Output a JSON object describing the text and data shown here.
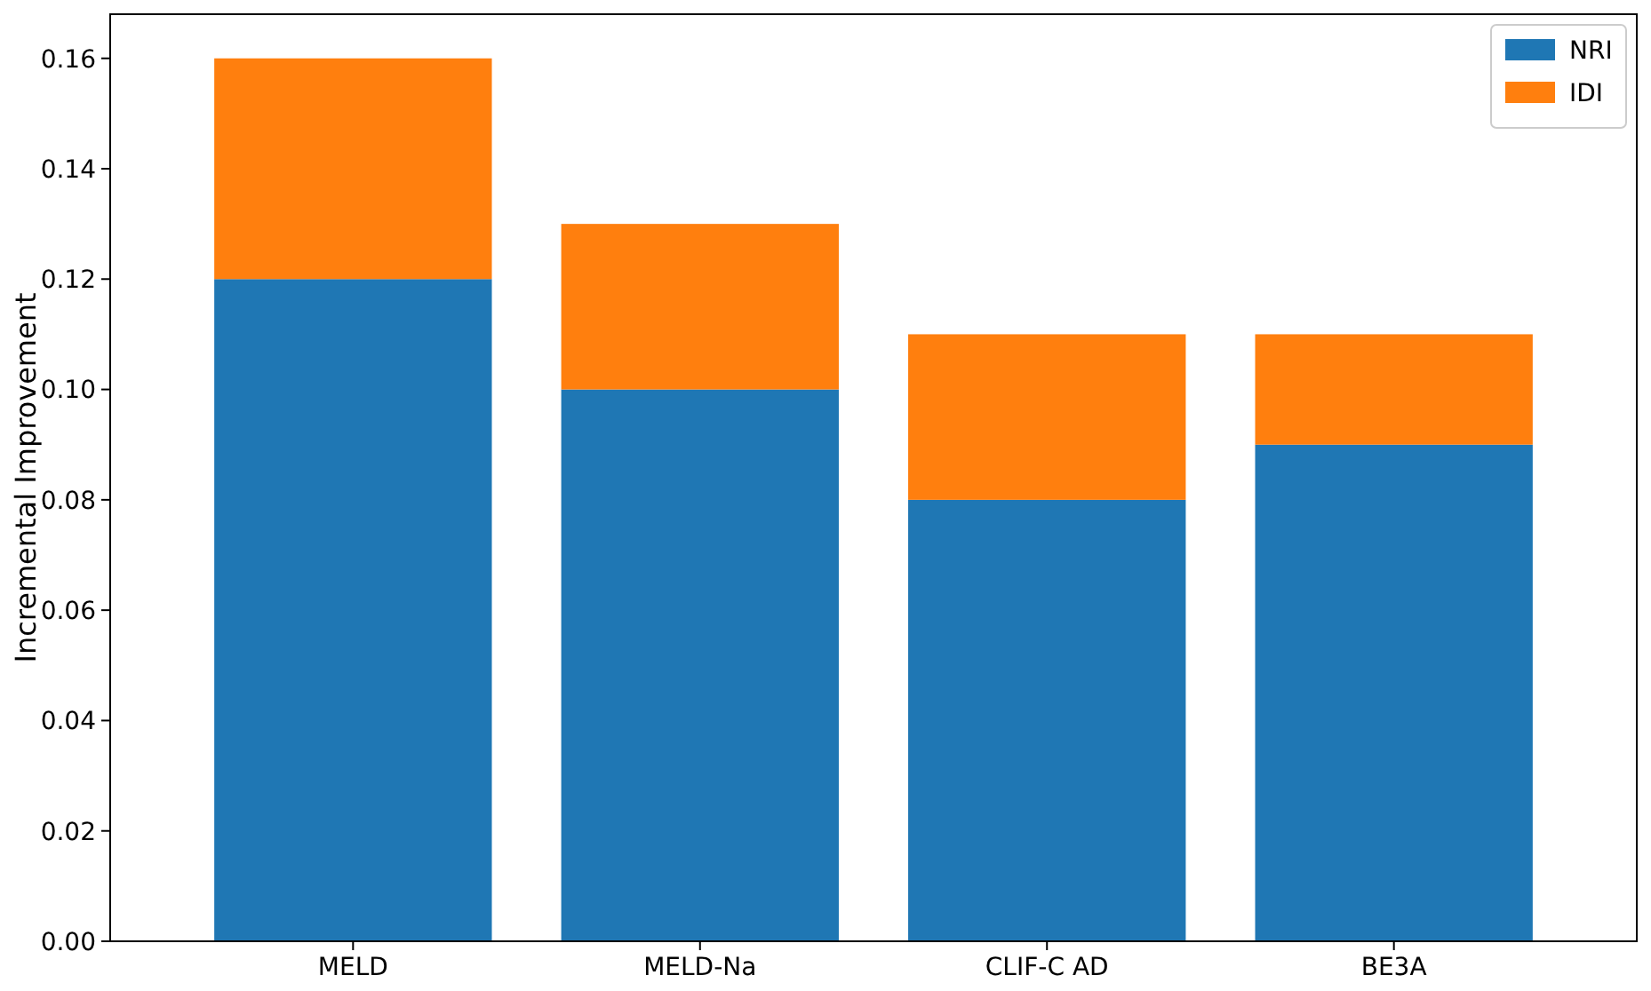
{
  "chart_data": {
    "type": "bar",
    "stacked": true,
    "ylabel": "Incremental Improvement",
    "categories": [
      "MELD",
      "MELD-Na",
      "CLIF-C AD",
      "BE3A"
    ],
    "series": [
      {
        "name": "NRI",
        "color": "#1f77b4",
        "values": [
          0.12,
          0.1,
          0.08,
          0.09
        ]
      },
      {
        "name": "IDI",
        "color": "#ff7f0e",
        "values": [
          0.04,
          0.03,
          0.03,
          0.02
        ]
      }
    ],
    "ylim": [
      0,
      0.168
    ],
    "yticks": [
      {
        "value": 0,
        "label": "0.00"
      },
      {
        "value": 0.02,
        "label": "0.02"
      },
      {
        "value": 0.04,
        "label": "0.04"
      },
      {
        "value": 0.06,
        "label": "0.06"
      },
      {
        "value": 0.08,
        "label": "0.08"
      },
      {
        "value": 0.1,
        "label": "0.10"
      },
      {
        "value": 0.12,
        "label": "0.12"
      },
      {
        "value": 0.14,
        "label": "0.14"
      },
      {
        "value": 0.16,
        "label": "0.16"
      }
    ],
    "grid": false,
    "legend": "top right"
  }
}
